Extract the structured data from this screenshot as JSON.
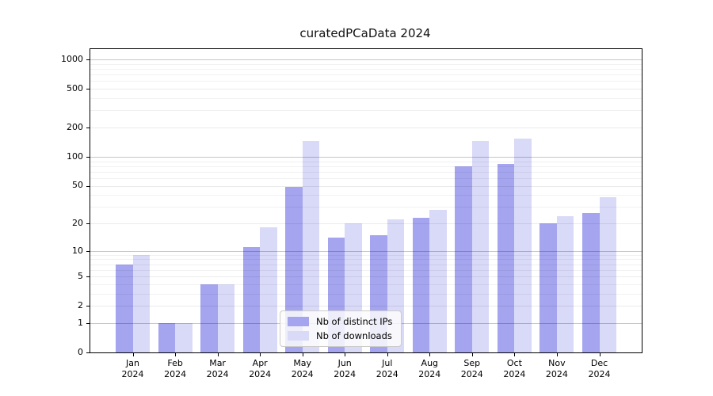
{
  "chart_data": {
    "type": "bar",
    "title": "curatedPCaData 2024",
    "categories": [
      "Jan 2024",
      "Feb 2024",
      "Mar 2024",
      "Apr 2024",
      "May 2024",
      "Jun 2024",
      "Jul 2024",
      "Aug 2024",
      "Sep 2024",
      "Oct 2024",
      "Nov 2024",
      "Dec 2024"
    ],
    "series": [
      {
        "name": "Nb of distinct IPs",
        "key": "distinct-ips",
        "color": "#a4a4ef",
        "values": [
          7,
          1,
          4,
          11,
          49,
          14,
          15,
          23,
          80,
          85,
          20,
          26
        ]
      },
      {
        "name": "Nb of downloads",
        "key": "downloads",
        "color": "#d9d9f8",
        "values": [
          9,
          1,
          4,
          18,
          145,
          20,
          22,
          28,
          145,
          155,
          24,
          38
        ]
      }
    ],
    "y_ticks": [
      0,
      1,
      2,
      5,
      10,
      20,
      50,
      100,
      200,
      500,
      1000
    ],
    "y_decade_ticks": [
      1,
      10,
      100,
      1000
    ],
    "y_minor_multipliers": [
      3,
      4,
      6,
      7,
      8,
      9
    ],
    "y_scale": "log10(value+1)",
    "ylim": [
      0,
      1280
    ],
    "xlabel": "",
    "ylabel": "",
    "grid": "on",
    "legend_position": "lower center"
  }
}
